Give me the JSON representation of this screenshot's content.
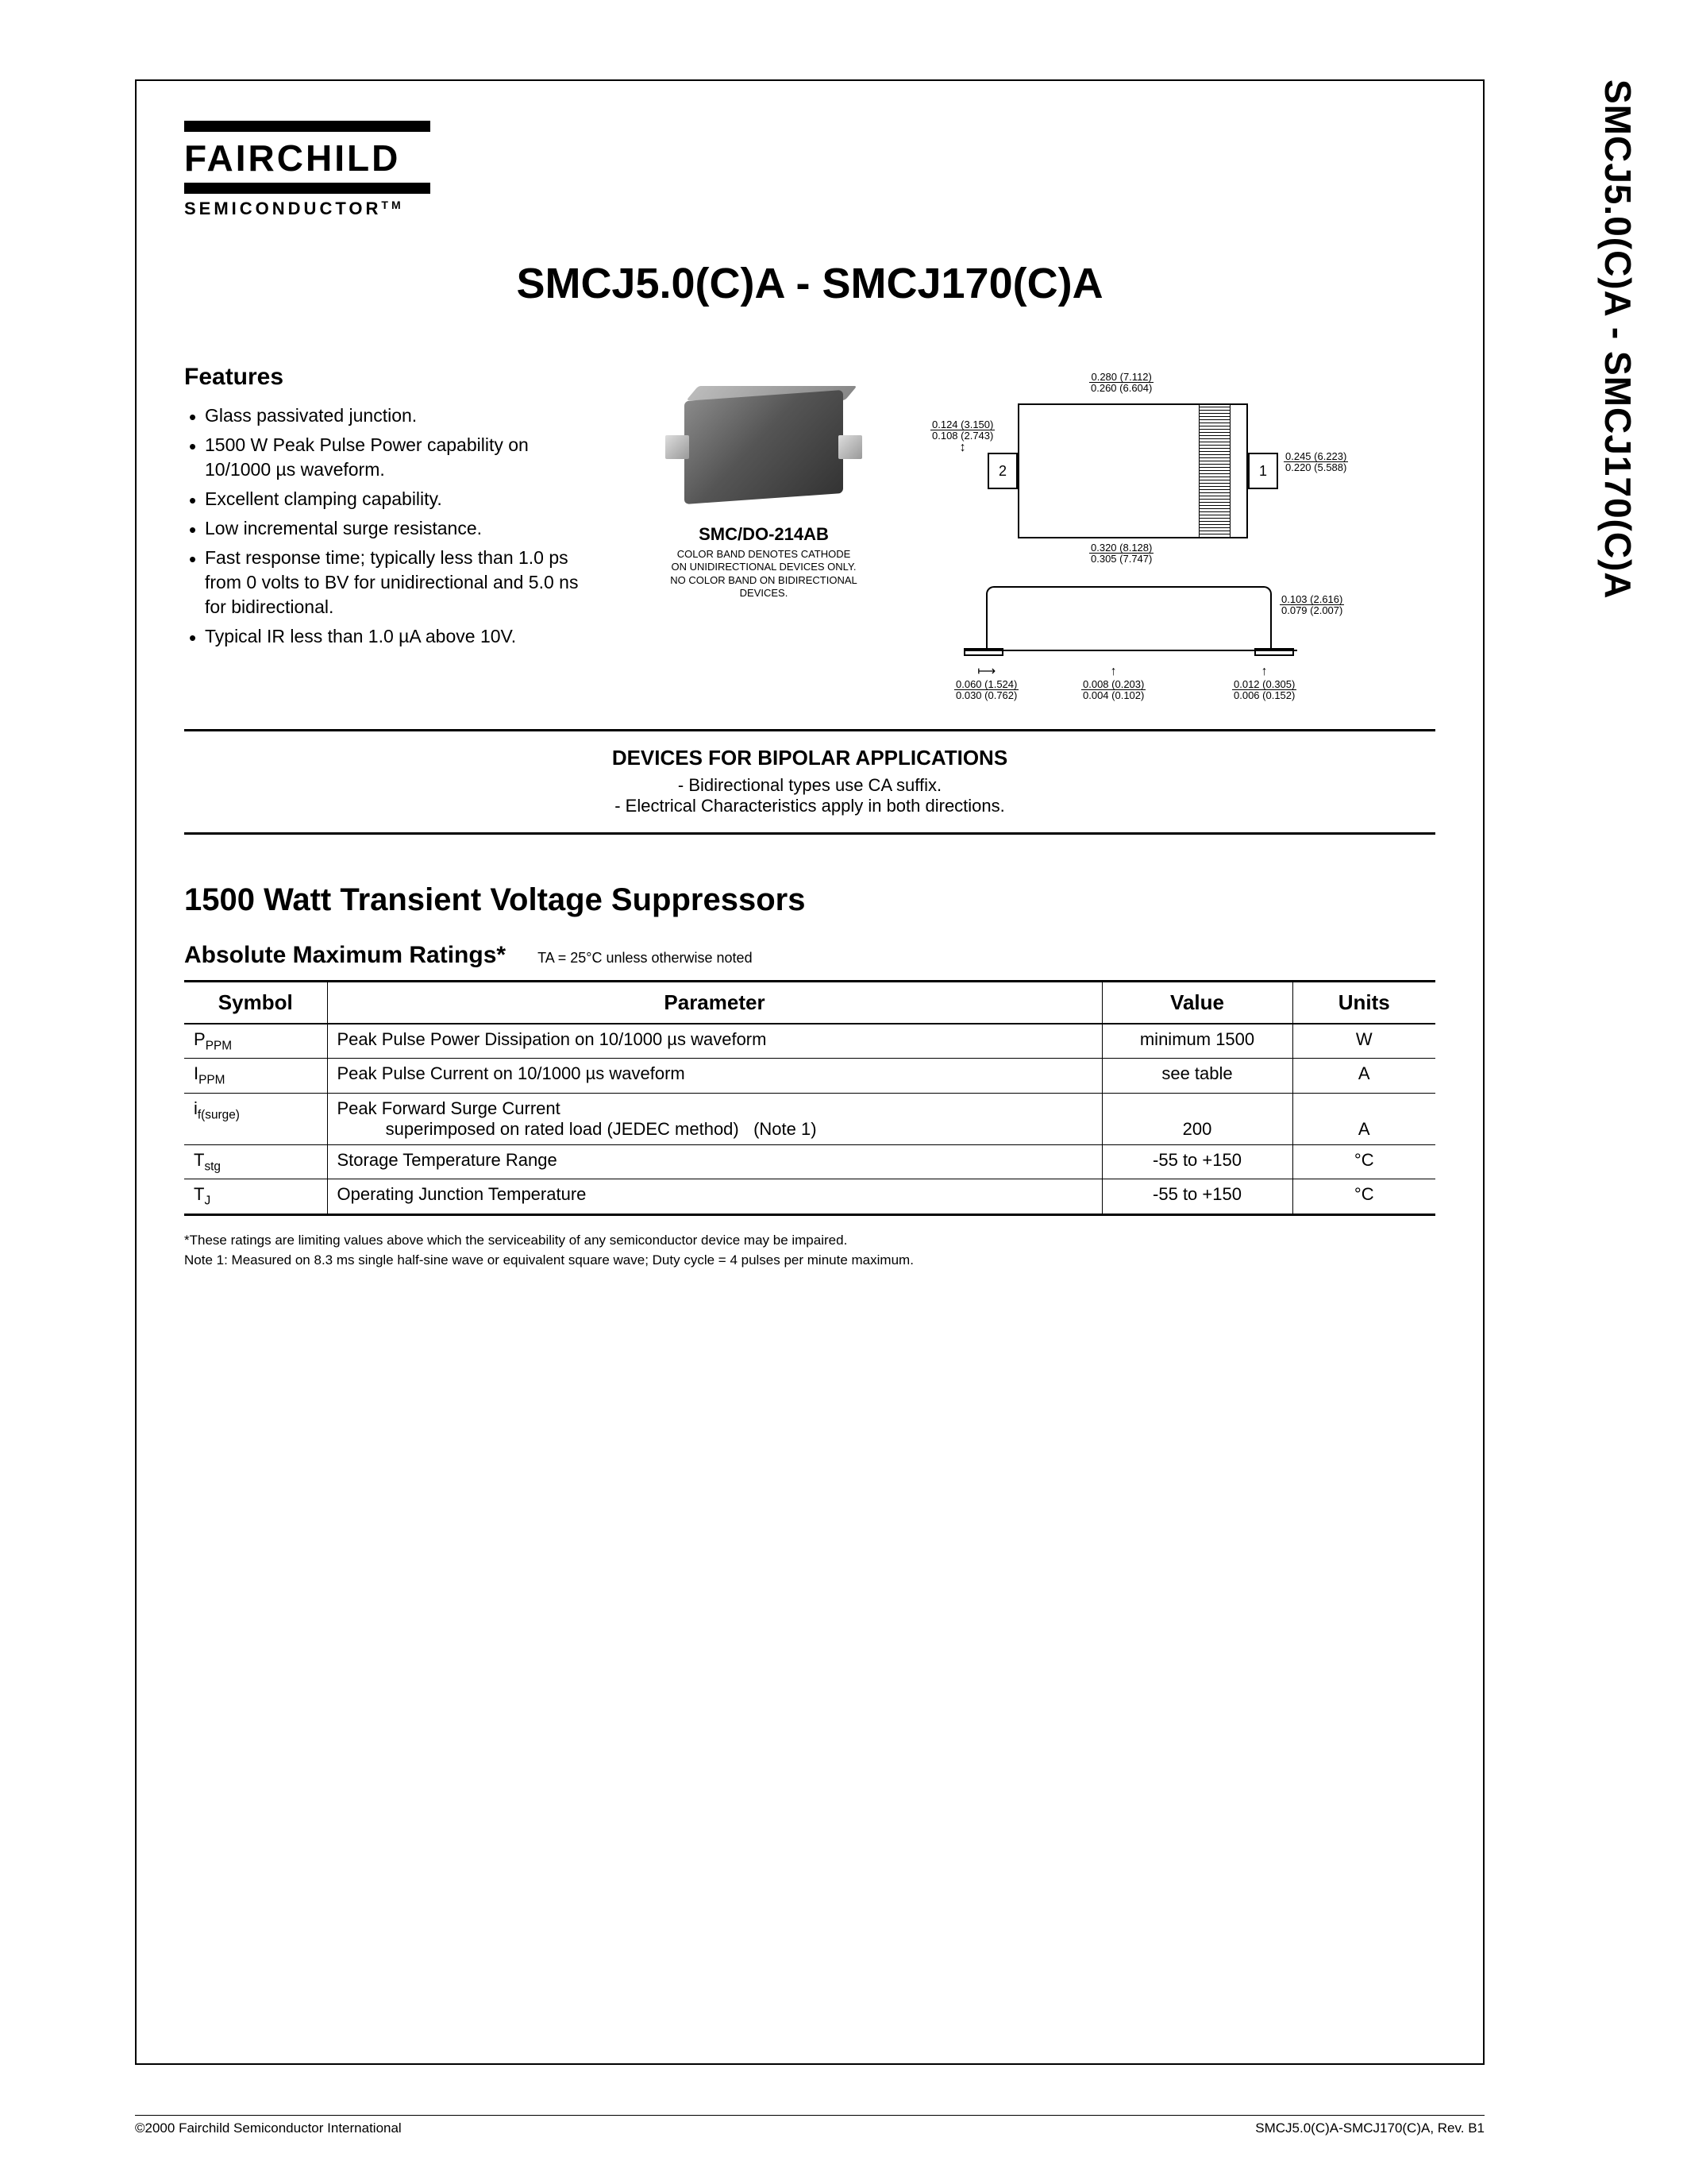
{
  "logo": {
    "name": "FAIRCHILD",
    "sub": "SEMICONDUCTOR",
    "tm": "TM"
  },
  "side_title": "SMCJ5.0(C)A - SMCJ170(C)A",
  "main_title": "SMCJ5.0(C)A - SMCJ170(C)A",
  "features": {
    "heading": "Features",
    "items": [
      "Glass passivated junction.",
      "1500 W Peak Pulse Power capability on 10/1000 µs waveform.",
      "Excellent clamping capability.",
      "Low incremental surge resistance.",
      "Fast response time; typically less than 1.0 ps from 0 volts to BV for unidirectional and 5.0 ns for bidirectional.",
      "Typical IR less than 1.0 µA above 10V."
    ]
  },
  "package": {
    "name": "SMC/DO-214AB",
    "note_l1": "COLOR BAND DENOTES CATHODE",
    "note_l2": "ON UNIDIRECTIONAL DEVICES ONLY.",
    "note_l3": "NO COLOR BAND ON BIDIRECTIONAL",
    "note_l4": "DEVICES."
  },
  "dims": {
    "top_w": {
      "t": "0.280 (7.112)",
      "b": "0.260 (6.604)"
    },
    "left_h": {
      "t": "0.124 (3.150)",
      "b": "0.108 (2.743)"
    },
    "right_h": {
      "t": "0.245 (6.223)",
      "b": "0.220 (5.588)"
    },
    "bot_w": {
      "t": "0.320 (8.128)",
      "b": "0.305 (7.747)"
    },
    "pin1": "1",
    "pin2": "2",
    "prof_h": {
      "t": "0.103 (2.616)",
      "b": "0.079 (2.007)"
    },
    "b1": {
      "t": "0.060 (1.524)",
      "b": "0.030 (0.762)"
    },
    "b2": {
      "t": "0.008 (0.203)",
      "b": "0.004 (0.102)"
    },
    "b3": {
      "t": "0.012 (0.305)",
      "b": "0.006 (0.152)"
    }
  },
  "bipolar": {
    "heading": "DEVICES FOR BIPOLAR APPLICATIONS",
    "l1": "- Bidirectional  types use CA suffix.",
    "l2": "- Electrical Characteristics apply in both directions."
  },
  "section2_title": "1500 Watt Transient Voltage Suppressors",
  "ratings": {
    "title": "Absolute Maximum Ratings*",
    "cond": "TA = 25°C unless otherwise noted",
    "headers": [
      "Symbol",
      "Parameter",
      "Value",
      "Units"
    ],
    "rows": [
      {
        "sym": "P",
        "sub": "PPM",
        "param": "Peak Pulse Power Dissipation on 10/1000 µs waveform",
        "value": "minimum 1500",
        "units": "W"
      },
      {
        "sym": "I",
        "sub": "PPM",
        "param": "Peak Pulse Current on 10/1000 µs waveform",
        "value": "see table",
        "units": "A"
      },
      {
        "sym": "i",
        "sub": "f(surge)",
        "param": "Peak Forward Surge Current\n          superimposed on rated load (JEDEC method)   (Note 1)",
        "value": "200",
        "units": "A"
      },
      {
        "sym": "T",
        "sub": "stg",
        "param": "Storage Temperature Range",
        "value": "-55 to +150",
        "units": "°C"
      },
      {
        "sym": "T",
        "sub": "J",
        "param": "Operating Junction Temperature",
        "value": "-55 to +150",
        "units": "°C"
      }
    ]
  },
  "notes": {
    "star": "*These ratings are limiting values above which the serviceability of any semiconductor device may be impaired.",
    "n1": "Note 1: Measured on 8.3 ms single half-sine wave or equivalent square wave; Duty cycle = 4 pulses per minute maximum."
  },
  "footer": {
    "left": "©2000 Fairchild Semiconductor International",
    "right": "SMCJ5.0(C)A-SMCJ170(C)A, Rev. B1"
  }
}
